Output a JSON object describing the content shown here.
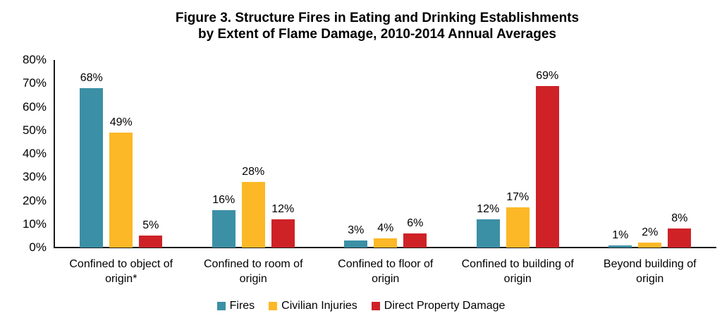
{
  "title": {
    "line1": "Figure 3. Structure Fires in Eating and Drinking Establishments",
    "line2": "by Extent of Flame Damage, 2010-2014 Annual Averages"
  },
  "chart_data": {
    "type": "bar",
    "title": "Figure 3. Structure Fires in Eating and Drinking Establishments by Extent of Flame Damage, 2010-2014 Annual Averages",
    "categories": [
      "Confined to object of origin*",
      "Confined to room of origin",
      "Confined to floor of origin",
      "Confined to building of origin",
      "Beyond building of origin"
    ],
    "series": [
      {
        "name": "Fires",
        "color": "#3B90A5",
        "values": [
          68,
          16,
          3,
          12,
          1
        ]
      },
      {
        "name": "Civilian Injuries",
        "color": "#FCB826",
        "values": [
          49,
          28,
          4,
          17,
          2
        ]
      },
      {
        "name": "Direct Property Damage",
        "color": "#CE2227",
        "values": [
          5,
          12,
          6,
          69,
          8
        ]
      }
    ],
    "value_suffix": "%",
    "yticks": [
      "0%",
      "10%",
      "20%",
      "30%",
      "40%",
      "50%",
      "60%",
      "70%",
      "80%"
    ],
    "ylim": [
      0,
      80
    ],
    "ytick_step": 10,
    "xlabel": "",
    "ylabel": "",
    "grid": false,
    "legend_position": "bottom"
  }
}
